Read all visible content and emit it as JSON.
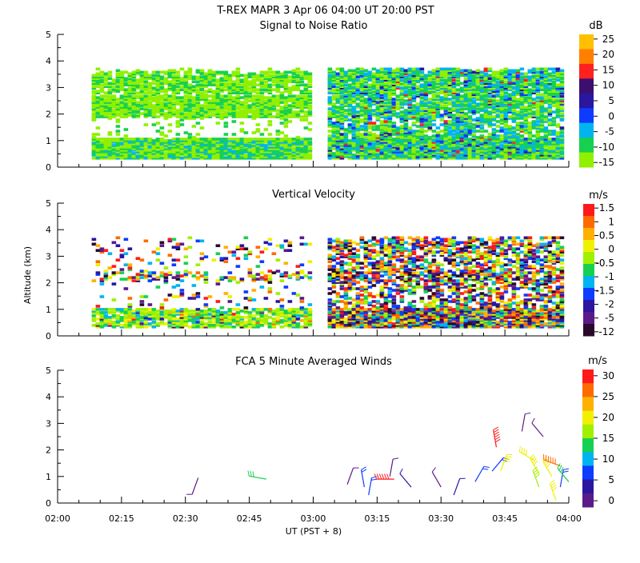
{
  "header": {
    "title": "T-REX  MAPR  3 Apr 06  04:00 UT  20:00  PST"
  },
  "shared": {
    "ylabel": "Altitude (km)",
    "xlabel": "UT  (PST + 8)",
    "x_ticks": [
      "02:00",
      "02:15",
      "02:30",
      "02:45",
      "03:00",
      "03:15",
      "03:30",
      "03:45",
      "04:00"
    ],
    "y_ticks": [
      "0",
      "1",
      "2",
      "3",
      "4",
      "5"
    ]
  },
  "chart_data": [
    {
      "type": "heatmap",
      "title": "Signal to Noise Ratio",
      "xlim": [
        "02:00",
        "04:00"
      ],
      "ylim": [
        0,
        5
      ],
      "colorbar": {
        "unit": "dB",
        "labels": [
          "25",
          "20",
          "15",
          "10",
          "5",
          "0",
          "-5",
          "-10",
          "-15"
        ],
        "colors": [
          "#ffc000",
          "#ff7f00",
          "#ff2020",
          "#3c0f6e",
          "#2a16a0",
          "#0e3cff",
          "#00b4f0",
          "#18d050",
          "#90f000"
        ]
      },
      "data_gap": [
        "03:00",
        "03:01"
      ],
      "layers_km": [
        [
          0.3,
          1.0
        ],
        [
          1.9,
          2.6
        ],
        [
          2.8,
          3.6
        ]
      ]
    },
    {
      "type": "heatmap",
      "title": "Vertical Velocity",
      "xlim": [
        "02:00",
        "04:00"
      ],
      "ylim": [
        0,
        5
      ],
      "colorbar": {
        "unit": "m/s",
        "labels": [
          "1.5",
          "1",
          "0.5",
          "0",
          "-0.5",
          "-1",
          "-1.5",
          "-2",
          "-5",
          "-12"
        ],
        "colors": [
          "#ff1a1a",
          "#ff6a00",
          "#ffb000",
          "#f0f000",
          "#a0f000",
          "#18d050",
          "#00b4f0",
          "#0e3cff",
          "#2a16a0",
          "#5a1a8a",
          "#2a0a2a"
        ]
      }
    },
    {
      "type": "scatter",
      "title": "FCA 5 Minute Averaged Winds",
      "xlim": [
        "02:00",
        "04:00"
      ],
      "ylim": [
        0,
        5
      ],
      "colorbar": {
        "unit": "m/s",
        "labels": [
          "30",
          "25",
          "20",
          "15",
          "10",
          "5",
          "0"
        ],
        "colors": [
          "#ff1a1a",
          "#ff6a00",
          "#ffb000",
          "#f0f000",
          "#a0f000",
          "#18d050",
          "#00b4f0",
          "#0e3cff",
          "#2a16a0",
          "#5a1a8a"
        ]
      },
      "barbs": [
        {
          "t": 153,
          "alt": 0.95,
          "speed": 4,
          "dir": 200
        },
        {
          "t": 169,
          "alt": 0.9,
          "speed": 15,
          "dir": 280
        },
        {
          "t": 188,
          "alt": 0.7,
          "speed": 4,
          "dir": 20
        },
        {
          "t": 193,
          "alt": 0.3,
          "speed": 8,
          "dir": 10
        },
        {
          "t": 192,
          "alt": 0.6,
          "speed": 8,
          "dir": 350
        },
        {
          "t": 198,
          "alt": 1.0,
          "speed": 4,
          "dir": 10
        },
        {
          "t": 199,
          "alt": 0.9,
          "speed": 30,
          "dir": 270
        },
        {
          "t": 203,
          "alt": 0.6,
          "speed": 5,
          "dir": 320
        },
        {
          "t": 210,
          "alt": 0.6,
          "speed": 4,
          "dir": 330
        },
        {
          "t": 213,
          "alt": 0.3,
          "speed": 6,
          "dir": 20
        },
        {
          "t": 218,
          "alt": 0.8,
          "speed": 10,
          "dir": 30
        },
        {
          "t": 222,
          "alt": 1.2,
          "speed": 10,
          "dir": 40
        },
        {
          "t": 223,
          "alt": 2.1,
          "speed": 30,
          "dir": 350
        },
        {
          "t": 224,
          "alt": 1.2,
          "speed": 20,
          "dir": 20
        },
        {
          "t": 229,
          "alt": 2.7,
          "speed": 3,
          "dir": 10
        },
        {
          "t": 234,
          "alt": 2.5,
          "speed": 3,
          "dir": 320
        },
        {
          "t": 232,
          "alt": 1.6,
          "speed": 22,
          "dir": 300
        },
        {
          "t": 233,
          "alt": 1.1,
          "speed": 20,
          "dir": 330
        },
        {
          "t": 233,
          "alt": 0.6,
          "speed": 18,
          "dir": 340
        },
        {
          "t": 236,
          "alt": 1.0,
          "speed": 20,
          "dir": 330
        },
        {
          "t": 237,
          "alt": 0.1,
          "speed": 20,
          "dir": 340
        },
        {
          "t": 238,
          "alt": 0.6,
          "speed": 10,
          "dir": 10
        },
        {
          "t": 238,
          "alt": 1.4,
          "speed": 28,
          "dir": 290
        },
        {
          "t": 240,
          "alt": 0.8,
          "speed": 16,
          "dir": 320
        }
      ]
    }
  ]
}
